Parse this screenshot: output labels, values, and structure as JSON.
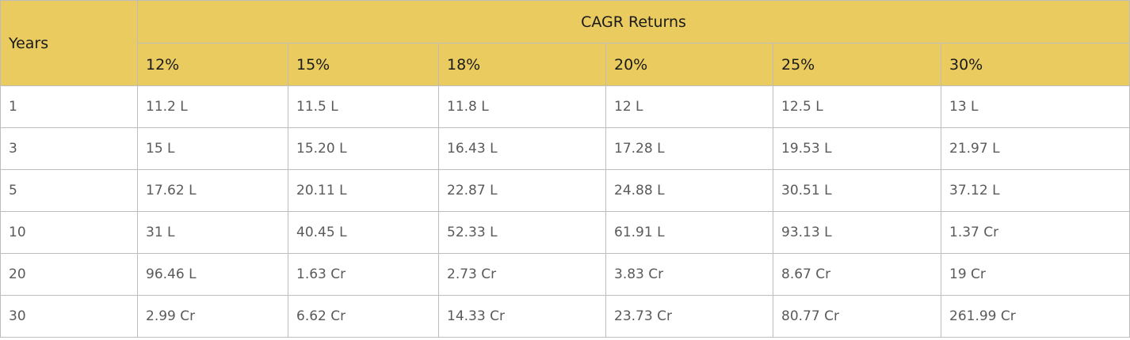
{
  "table": {
    "row_header_label": "Years",
    "group_label": "CAGR Returns",
    "rate_columns": [
      "12%",
      "15%",
      "18%",
      "20%",
      "25%",
      "30%"
    ],
    "rows": [
      {
        "years": "1",
        "values": [
          "11.2 L",
          "11.5 L",
          "11.8 L",
          "12 L",
          "12.5 L",
          "13 L"
        ]
      },
      {
        "years": "3",
        "values": [
          "15 L",
          "15.20 L",
          "16.43 L",
          "17.28 L",
          "19.53 L",
          "21.97 L"
        ]
      },
      {
        "years": "5",
        "values": [
          "17.62 L",
          "20.11 L",
          "22.87 L",
          "24.88 L",
          "30.51 L",
          "37.12 L"
        ]
      },
      {
        "years": "10",
        "values": [
          "31 L",
          "40.45 L",
          "52.33 L",
          "61.91 L",
          "93.13 L",
          "1.37 Cr"
        ]
      },
      {
        "years": "20",
        "values": [
          "96.46 L",
          "1.63 Cr",
          "2.73 Cr",
          "3.83 Cr",
          "8.67 Cr",
          "19 Cr"
        ]
      },
      {
        "years": "30",
        "values": [
          "2.99 Cr",
          "6.62 Cr",
          "14.33 Cr",
          "23.73 Cr",
          "80.77 Cr",
          "261.99 Cr"
        ]
      }
    ]
  },
  "colors": {
    "header_background": "#e9cb5f",
    "border": "#bdbdbd",
    "cell_text": "#5a5a5a",
    "header_text": "#1a1a1a"
  }
}
